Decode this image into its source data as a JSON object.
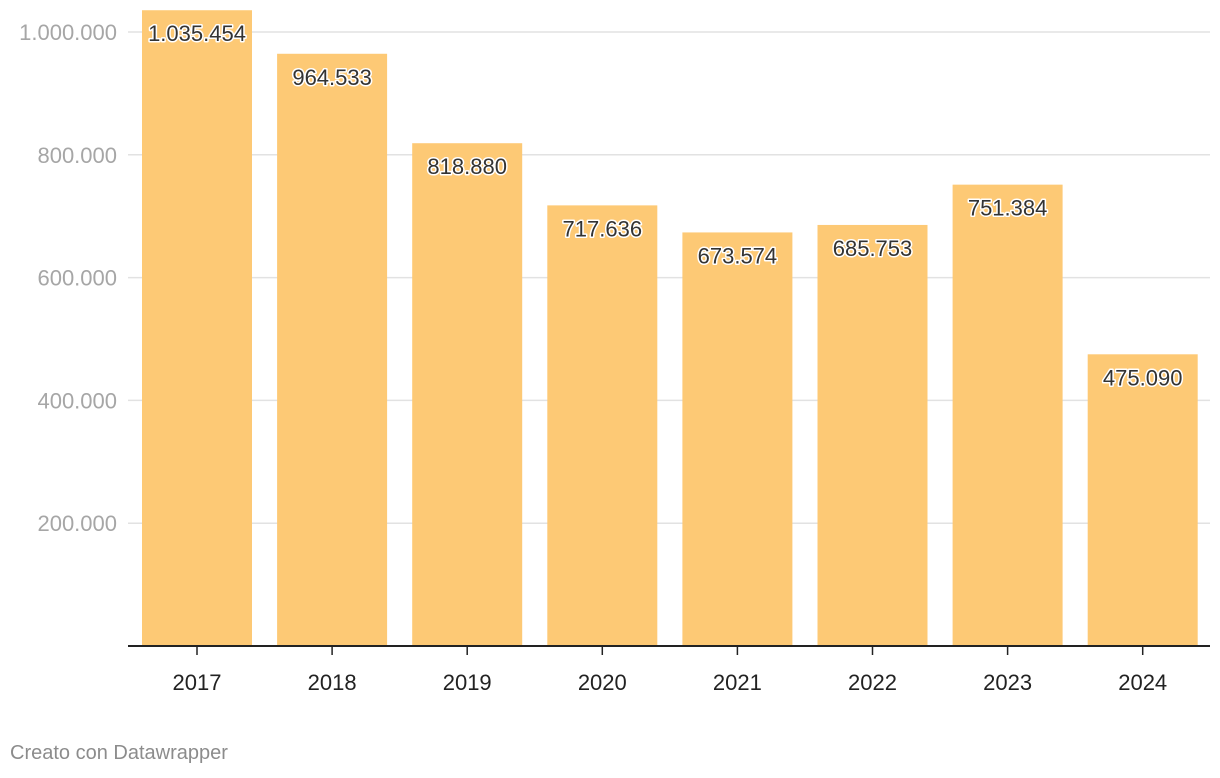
{
  "chart_data": {
    "type": "bar",
    "categories": [
      "2017",
      "2018",
      "2019",
      "2020",
      "2021",
      "2022",
      "2023",
      "2024"
    ],
    "values": [
      1035454,
      964533,
      818880,
      717636,
      673574,
      685753,
      751384,
      475090
    ],
    "value_labels": [
      "1.035.454",
      "964.533",
      "818.880",
      "717.636",
      "673.574",
      "685.753",
      "751.384",
      "475.090"
    ],
    "ylim": [
      0,
      1000000
    ],
    "yticks": [
      200000,
      400000,
      600000,
      800000,
      1000000
    ],
    "ytick_labels": [
      "200.000",
      "400.000",
      "600.000",
      "800.000",
      "1.000.000"
    ],
    "grid": true,
    "bar_color": "#fdc975",
    "axis_color": "#222222"
  },
  "credit": "Creato con Datawrapper"
}
